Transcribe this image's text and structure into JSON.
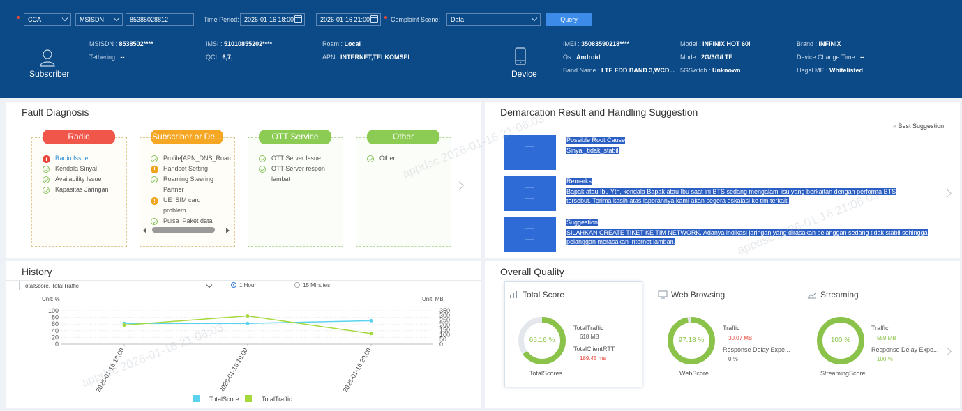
{
  "header": {
    "type_select": "CCA",
    "id_type_select": "MSISDN",
    "id_value": "85385028812",
    "time_period_label": "Time Period:",
    "start_time": "2026-01-16 18:00",
    "end_time": "2026-01-16 21:00",
    "complaint_scene_label": "Complaint Scene:",
    "complaint_scene": "Data",
    "query_label": "Query"
  },
  "subscriber": {
    "label": "Subscriber",
    "msisdn_label": "MSISDN",
    "msisdn": "8538502****",
    "tethering_label": "Tethering",
    "tethering": "--",
    "imsi_label": "IMSI",
    "imsi": "51010855202****",
    "qci_label": "QCI",
    "qci": "6,7,",
    "roam_label": "Roam",
    "roam": "Local",
    "apn_label": "APN",
    "apn": "INTERNET,TELKOMSEL"
  },
  "device": {
    "label": "Device",
    "imei_label": "IMEI",
    "imei": "35083590218****",
    "os_label": "Os",
    "os": "Android",
    "band_label": "Band Name",
    "band": "LTE FDD BAND 3,WCD...",
    "model_label": "Model",
    "model": "INFINIX HOT 60I",
    "mode_label": "Mode",
    "mode": "2G/3G/LTE",
    "switch_label": "5GSwitch",
    "switch": "Unknown",
    "brand_label": "Brand",
    "brand": "INFINIX",
    "change_label": "Device Change Time",
    "change": "--",
    "illegal_label": "Illegal ME",
    "illegal": "Whitelisted"
  },
  "fault": {
    "title": "Fault Diagnosis",
    "columns": [
      {
        "name": "Radio",
        "color": "#f0564a",
        "items": [
          {
            "text": "Radio Issue",
            "status": "error"
          },
          {
            "text": "Kendala Sinyal",
            "status": "ok"
          },
          {
            "text": "Availability Issue",
            "status": "ok"
          },
          {
            "text": "Kapasitas Jaringan",
            "status": "ok"
          }
        ]
      },
      {
        "name": "Subscriber or De...",
        "color": "#f5a623",
        "items": [
          {
            "text": "Profile[APN_DNS_Roam",
            "status": "ok"
          },
          {
            "text": "Handset Setting",
            "status": "warn"
          },
          {
            "text": "Roaming Steering",
            "status": "ok"
          },
          {
            "text": "Partner",
            "status": "none"
          },
          {
            "text": "UE_SIM card",
            "status": "warn"
          },
          {
            "text": "problem",
            "status": "none"
          },
          {
            "text": "Pulsa_Paket data",
            "status": "ok"
          }
        ]
      },
      {
        "name": "OTT Service",
        "color": "#8dcc54",
        "items": [
          {
            "text": "OTT Server Issue",
            "status": "ok"
          },
          {
            "text": "OTT Server respon",
            "status": "ok"
          },
          {
            "text": "lambat",
            "status": "none"
          }
        ]
      },
      {
        "name": "Other",
        "color": "#8dcc54",
        "items": [
          {
            "text": "Other",
            "status": "ok"
          }
        ]
      }
    ]
  },
  "demarcation": {
    "title": "Demarcation Result and Handling Suggestion",
    "best_suggestion": "Best Suggestion",
    "root_cause_label": "Possible Root Cause",
    "root_cause": "Sinyal_tidak_stabil",
    "remarks_label": "Remarks",
    "remarks_line1": "Bapak atau Ibu Yth, kendala Bapak atau Ibu saat ini BTS sedang mengalami isu yang berkaitan dengan performa BTS",
    "remarks_line2": "tersebut. Terima kasih atas laporannya kami akan segera eskalasi ke tim terkait.",
    "suggestion_label": "Suggestion",
    "suggestion_line1": "SILAHKAN CREATE TIKET KE TIM NETWORK. Adanya indikasi jaringan yang dirasakan pelanggan sedang tidak stabil sehingga",
    "suggestion_line2": "pelanggan merasakan internet lamban."
  },
  "history": {
    "title": "History",
    "select": "TotalScore, TotalTraffic",
    "radio_1h": "1 Hour",
    "radio_15m": "15 Minutes",
    "unit_left": "Unit: %",
    "unit_right": "Unit: MB"
  },
  "chart_data": {
    "type": "line",
    "categories": [
      "2026-01-16 18:00",
      "2026-01-16 19:00",
      "2026-01-16 20:00"
    ],
    "series": [
      {
        "name": "TotalScore",
        "axis": "left",
        "color": "#5bd3ee",
        "values": [
          62,
          62,
          70
        ]
      },
      {
        "name": "TotalTraffic",
        "axis": "right",
        "color": "#a5d93b",
        "values": [
          200,
          295,
          110
        ]
      }
    ],
    "y_left": {
      "ticks": [
        0,
        20,
        40,
        60,
        80,
        100
      ],
      "range": [
        0,
        100
      ]
    },
    "y_right": {
      "ticks": [
        0,
        50,
        100,
        150,
        200,
        250,
        300,
        350
      ],
      "range": [
        0,
        350
      ]
    },
    "grid": true,
    "legend": "bottom"
  },
  "quality": {
    "title": "Overall Quality",
    "total": {
      "title": "Total Score",
      "pct": "65.16 %",
      "pct_value": 65.16,
      "name": "TotalScores",
      "m1_label": "TotalTraffic",
      "m1_value": "618 MB",
      "m2_label": "TotalClientRTT",
      "m2_value": "189.45 ms"
    },
    "web": {
      "title": "Web Browsing",
      "pct": "97.18 %",
      "pct_value": 97.18,
      "name": "WebScore",
      "m1_label": "Traffic",
      "m1_value": "30.07 MB",
      "m2_label": "Response Delay Expe...",
      "m2_value": "0 %"
    },
    "streaming": {
      "title": "Streaming",
      "pct": "100 %",
      "pct_value": 100,
      "name": "StreamingScore",
      "m1_label": "Traffic",
      "m1_value": "559 MB",
      "m2_label": "Response Delay Expe...",
      "m2_value": "100 %"
    }
  },
  "watermark": "appdsc 2026-01-16 21:06:03",
  "colors": {
    "header": "#0b4a86",
    "accent": "#3d8be8",
    "ok": "#8bc34a",
    "error": "#e64a3d"
  }
}
